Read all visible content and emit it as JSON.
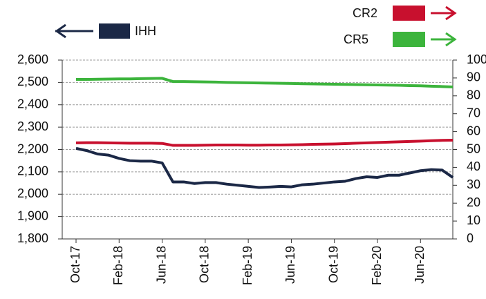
{
  "chart_data": {
    "type": "line",
    "categories": [
      "Oct-17",
      null,
      null,
      null,
      "Feb-18",
      null,
      null,
      null,
      "Jun-18",
      null,
      null,
      null,
      "Oct-18",
      null,
      null,
      null,
      "Feb-19",
      null,
      null,
      null,
      "Jun-19",
      null,
      null,
      null,
      "Oct-19",
      null,
      null,
      null,
      "Feb-20",
      null,
      null,
      null,
      "Jun-20",
      null,
      null,
      null
    ],
    "series": [
      {
        "name": "IHH",
        "color": "#1b2846",
        "axis": "y",
        "values": [
          2205,
          2195,
          2180,
          2175,
          2160,
          2150,
          2148,
          2148,
          2140,
          2055,
          2055,
          2048,
          2052,
          2052,
          2045,
          2040,
          2035,
          2030,
          2032,
          2035,
          2033,
          2042,
          2045,
          2050,
          2055,
          2058,
          2070,
          2078,
          2075,
          2085,
          2085,
          2095,
          2105,
          2110,
          2108,
          2075
        ]
      },
      {
        "name": "CR2",
        "color": "#c8102e",
        "axis": "y2",
        "values": [
          53.7,
          53.8,
          53.8,
          53.7,
          53.6,
          53.5,
          53.5,
          53.5,
          53.4,
          52.3,
          52.3,
          52.3,
          52.4,
          52.5,
          52.5,
          52.5,
          52.4,
          52.4,
          52.5,
          52.5,
          52.6,
          52.7,
          52.9,
          53.0,
          53.1,
          53.3,
          53.5,
          53.7,
          53.9,
          54.1,
          54.3,
          54.5,
          54.7,
          54.9,
          55.1,
          55.2
        ]
      },
      {
        "name": "CR5",
        "color": "#3cb43c",
        "axis": "y2",
        "values": [
          89.2,
          89.2,
          89.3,
          89.4,
          89.5,
          89.5,
          89.6,
          89.7,
          89.8,
          88.0,
          88.0,
          87.9,
          87.8,
          87.7,
          87.5,
          87.4,
          87.3,
          87.2,
          87.1,
          87.0,
          86.9,
          86.8,
          86.7,
          86.6,
          86.5,
          86.4,
          86.3,
          86.2,
          86.1,
          86.0,
          85.9,
          85.7,
          85.6,
          85.4,
          85.2,
          85.0
        ]
      }
    ],
    "ylim": [
      1800,
      2600
    ],
    "yticks": [
      {
        "value": 1800,
        "label": "1,800"
      },
      {
        "value": 1900,
        "label": "1,900"
      },
      {
        "value": 2000,
        "label": "2,000"
      },
      {
        "value": 2100,
        "label": "2,100"
      },
      {
        "value": 2200,
        "label": "2,200"
      },
      {
        "value": 2300,
        "label": "2,300"
      },
      {
        "value": 2400,
        "label": "2,400"
      },
      {
        "value": 2500,
        "label": "2,500"
      },
      {
        "value": 2600,
        "label": "2,600"
      }
    ],
    "y2lim": [
      0,
      100
    ],
    "y2ticks": [
      0,
      10,
      20,
      30,
      40,
      50,
      60,
      70,
      80,
      90,
      100
    ],
    "grid": true
  }
}
